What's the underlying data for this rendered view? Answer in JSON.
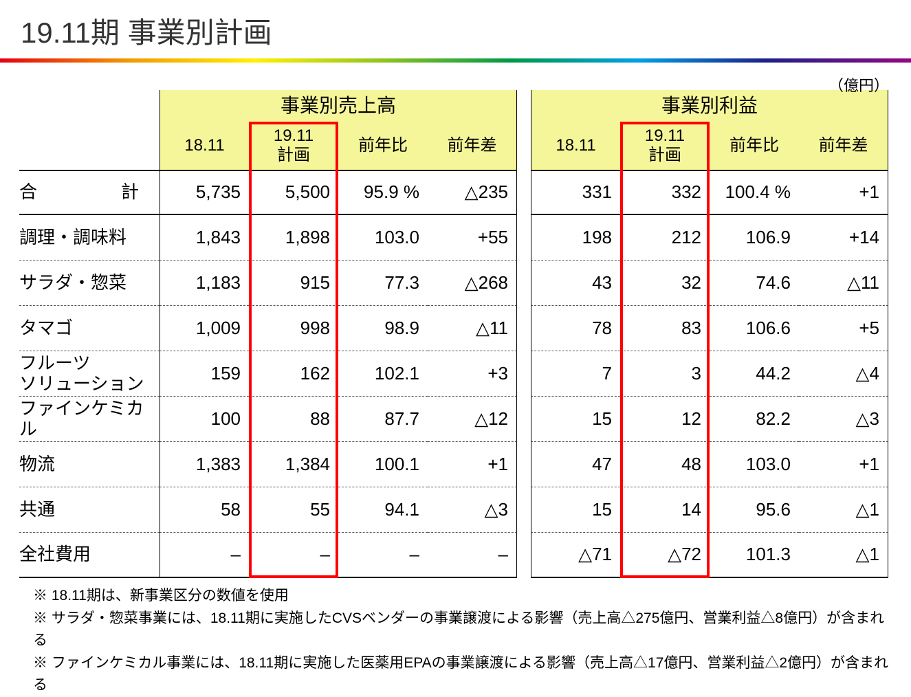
{
  "slide": {
    "title": "19.11期  事業別計画",
    "unit_note": "（億円）"
  },
  "colors": {
    "header_fill": "#f5f599",
    "highlight_border": "#ff0000",
    "text": "#000000",
    "rainbow": [
      "#e60012",
      "#f39800",
      "#fff100",
      "#8fc31f",
      "#009944",
      "#00a0e9",
      "#1d2088",
      "#920783"
    ]
  },
  "table": {
    "type": "table",
    "group_headers": [
      "事業別売上高",
      "事業別利益"
    ],
    "sub_headers_sales": [
      "18.11",
      "19.11\n計画",
      "前年比",
      "前年差"
    ],
    "sub_headers_profit": [
      "18.11",
      "19.11\n計画",
      "前年比",
      "前年差"
    ],
    "rows": [
      {
        "label_a": "合",
        "label_b": "計",
        "spaced": true,
        "style": "solid-both",
        "sales": [
          "5,735",
          "5,500",
          "95.9 %",
          "△235"
        ],
        "profit": [
          "331",
          "332",
          "100.4 %",
          "+1"
        ]
      },
      {
        "label": "調理・調味料",
        "style": "dash",
        "sales": [
          "1,843",
          "1,898",
          "103.0",
          "+55"
        ],
        "profit": [
          "198",
          "212",
          "106.9",
          "+14"
        ]
      },
      {
        "label": "サラダ・惣菜",
        "style": "dash",
        "sales": [
          "1,183",
          "915",
          "77.3",
          "△268"
        ],
        "profit": [
          "43",
          "32",
          "74.6",
          "△11"
        ]
      },
      {
        "label": "タマゴ",
        "style": "dash",
        "sales": [
          "1,009",
          "998",
          "98.9",
          "△11"
        ],
        "profit": [
          "78",
          "83",
          "106.6",
          "+5"
        ]
      },
      {
        "label": "フルーツ\nソリューション",
        "style": "dash",
        "sales": [
          "159",
          "162",
          "102.1",
          "+3"
        ],
        "profit": [
          "7",
          "3",
          "44.2",
          "△4"
        ]
      },
      {
        "label": "ファインケミカル",
        "style": "dash",
        "sales": [
          "100",
          "88",
          "87.7",
          "△12"
        ],
        "profit": [
          "15",
          "12",
          "82.2",
          "△3"
        ]
      },
      {
        "label": "物流",
        "style": "dash",
        "sales": [
          "1,383",
          "1,384",
          "100.1",
          "+1"
        ],
        "profit": [
          "47",
          "48",
          "103.0",
          "+1"
        ]
      },
      {
        "label": "共通",
        "style": "dash",
        "sales": [
          "58",
          "55",
          "94.1",
          "△3"
        ],
        "profit": [
          "15",
          "14",
          "95.6",
          "△1"
        ]
      },
      {
        "label": "全社費用",
        "style": "solid-bottom",
        "sales": [
          "–",
          "–",
          "–",
          "–"
        ],
        "profit": [
          "△71",
          "△72",
          "101.3",
          "△1"
        ]
      }
    ],
    "highlight_columns": [
      "sales.1",
      "profit.1"
    ],
    "font_sizes": {
      "group_header": 28,
      "sub_header": 24,
      "cell": 26,
      "label": 26
    }
  },
  "footnotes": [
    "※ 18.11期は、新事業区分の数値を使用",
    "※ サラダ・惣菜事業には、18.11期に実施したCVSベンダーの事業譲渡による影響（売上高△275億円、営業利益△8億円）が含まれる",
    "※ ファインケミカル事業には、18.11期に実施した医薬用EPAの事業譲渡による影響（売上高△17億円、営業利益△2億円）が含まれる"
  ]
}
